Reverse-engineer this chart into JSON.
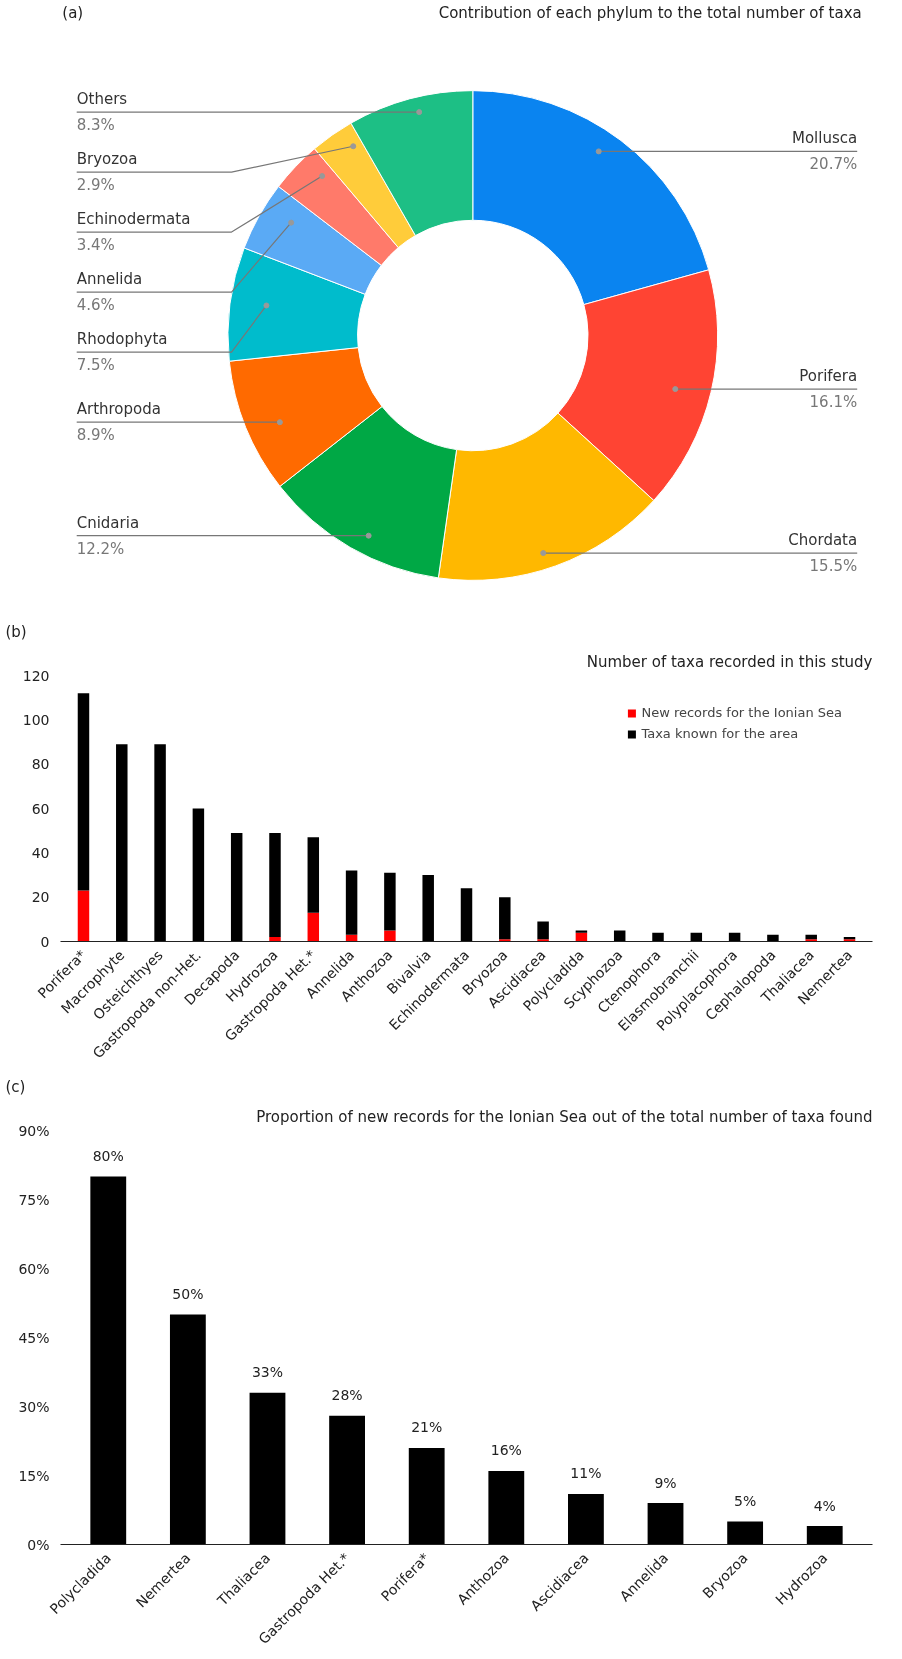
{
  "chart_data": [
    {
      "type": "donut",
      "title": "Contribution of each phylum to the total number of taxa",
      "annotations": [
        "(a)"
      ],
      "categories": [
        "Mollusca",
        "Porifera",
        "Chordata",
        "Cnidaria",
        "Arthropoda",
        "Rhodophyta",
        "Annelida",
        "Echinodermata",
        "Bryozoa",
        "Others"
      ],
      "values": [
        20.7,
        16.1,
        15.5,
        12.2,
        8.9,
        7.5,
        4.6,
        3.4,
        2.9,
        8.3
      ],
      "value_labels": [
        "20.7%",
        "16.1%",
        "15.5%",
        "12.2%",
        "8.9%",
        "7.5%",
        "4.6%",
        "3.4%",
        "2.9%",
        "8.3%"
      ],
      "colors": [
        "#0a84f0",
        "#ff4433",
        "#ffb800",
        "#00a845",
        "#ff6a00",
        "#00bccc",
        "#5aaaf5",
        "#ff7a6a",
        "#ffcc3a",
        "#1dbf85"
      ]
    },
    {
      "type": "bar",
      "stacked": true,
      "title": "Number of taxa recorded in this study",
      "annotations": [
        "(b)"
      ],
      "categories": [
        "Porifera*",
        "Macrophyte",
        "Osteichthyes",
        "Gastropoda non-Het.",
        "Decapoda",
        "Hydrozoa",
        "Gastropoda Het.*",
        "Annelida",
        "Anthozoa",
        "Bivalvia",
        "Echinodermata",
        "Bryozoa",
        "Ascidiacea",
        "Polycladida",
        "Scyphozoa",
        "Ctenophora",
        "Elasmobranchii",
        "Polyplacophora",
        "Cephalopoda",
        "Thaliacea",
        "Nemertea"
      ],
      "series": [
        {
          "name": "New records for the Ionian Sea",
          "color": "#ff0000",
          "values": [
            23,
            0,
            0,
            0,
            0,
            2,
            13,
            3,
            5,
            0,
            0,
            1,
            1,
            4,
            0,
            0,
            0,
            0,
            0,
            1,
            1
          ]
        },
        {
          "name": "Taxa known for the area",
          "color": "#000000",
          "values": [
            89,
            89,
            89,
            60,
            49,
            47,
            34,
            29,
            26,
            30,
            24,
            19,
            8,
            1,
            5,
            4,
            4,
            4,
            3,
            2,
            1
          ]
        }
      ],
      "ylim": [
        0,
        120
      ],
      "yticks": [
        0,
        20,
        40,
        60,
        80,
        100,
        120
      ],
      "legend": "top right"
    },
    {
      "type": "bar",
      "title": "Proportion of new records for the Ionian Sea out of the total number of taxa found",
      "annotations": [
        "(c)"
      ],
      "categories": [
        "Polycladida",
        "Nemertea",
        "Thaliacea",
        "Gastropoda Het.*",
        "Porifera*",
        "Anthozoa",
        "Ascidiacea",
        "Annelida",
        "Bryozoa",
        "Hydrozoa"
      ],
      "values": [
        80,
        50,
        33,
        28,
        21,
        16,
        11,
        9,
        5,
        4
      ],
      "color": "#000000",
      "value_labels": [
        "80%",
        "50%",
        "33%",
        "28%",
        "21%",
        "16%",
        "11%",
        "9%",
        "5%",
        "4%"
      ],
      "ylim": [
        0,
        90
      ],
      "yticks": [
        {
          "value": 0,
          "label": "0%"
        },
        {
          "value": 15,
          "label": "15%"
        },
        {
          "value": 30,
          "label": "30%"
        },
        {
          "value": 45,
          "label": "45%"
        },
        {
          "value": 60,
          "label": "60%"
        },
        {
          "value": 75,
          "label": "75%"
        },
        {
          "value": 90,
          "label": "90%"
        }
      ]
    }
  ]
}
